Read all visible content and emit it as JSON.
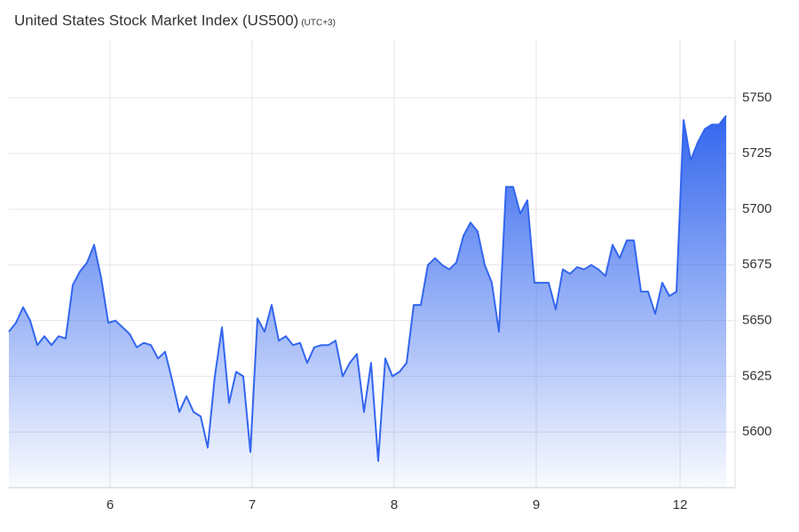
{
  "chart_data": {
    "type": "area",
    "title": "United States Stock Market Index (US500)",
    "subtitle": "(UTC+3)",
    "color": "#3366ee",
    "grid": true,
    "x": [
      0,
      1,
      2,
      3,
      4,
      5,
      6,
      7,
      8,
      9,
      10,
      11,
      12,
      13,
      14,
      15,
      16,
      17,
      18,
      19,
      20,
      21,
      22,
      23,
      24,
      25,
      26,
      27,
      28,
      29,
      30,
      31,
      32,
      33,
      34,
      35,
      36,
      37,
      38,
      39,
      40,
      41,
      42,
      43,
      44,
      45,
      46,
      47,
      48,
      49,
      50,
      51,
      52,
      53,
      54,
      55,
      56,
      57,
      58,
      59,
      60,
      61,
      62,
      63,
      64,
      65,
      66,
      67,
      68,
      69,
      70,
      71,
      72,
      73,
      74,
      75,
      76,
      77,
      78,
      79,
      80,
      81,
      82,
      83,
      84,
      85,
      86,
      87,
      88,
      89,
      90,
      91,
      92,
      93,
      94,
      95,
      96,
      97,
      98,
      99,
      100,
      101
    ],
    "values": [
      5645,
      5649,
      5656,
      5650,
      5639,
      5643,
      5639,
      5643,
      5642,
      5666,
      5672,
      5676,
      5684,
      5669,
      5649,
      5650,
      5647,
      5644,
      5638,
      5640,
      5639,
      5633,
      5636,
      5623,
      5609,
      5616,
      5609,
      5607,
      5593,
      5625,
      5647,
      5613,
      5627,
      5625,
      5591,
      5651,
      5645,
      5657,
      5641,
      5643,
      5639,
      5640,
      5631,
      5638,
      5639,
      5639,
      5641,
      5625,
      5631,
      5635,
      5609,
      5631,
      5587,
      5633,
      5625,
      5627,
      5631,
      5657,
      5657,
      5675,
      5678,
      5675,
      5673,
      5676,
      5688,
      5694,
      5690,
      5675,
      5667,
      5645,
      5710,
      5710,
      5698,
      5704,
      5667,
      5667,
      5667,
      5655,
      5673,
      5671,
      5674,
      5673,
      5675,
      5673,
      5670,
      5684,
      5678,
      5686,
      5686,
      5663,
      5663,
      5653,
      5667,
      5661,
      5663,
      5740,
      5722,
      5730,
      5736,
      5738,
      5738,
      5742
    ],
    "xlim": [
      0,
      102.25
    ],
    "xticks": [
      {
        "value": 14.25,
        "label": "6"
      },
      {
        "value": 34.25,
        "label": "7"
      },
      {
        "value": 54.25,
        "label": "8"
      },
      {
        "value": 74.25,
        "label": "9"
      },
      {
        "value": 94.5,
        "label": "12"
      }
    ],
    "ylim": [
      5575,
      5776
    ],
    "yticks": [
      5600,
      5625,
      5650,
      5675,
      5700,
      5725,
      5750
    ]
  }
}
